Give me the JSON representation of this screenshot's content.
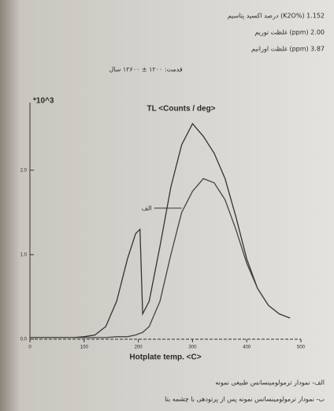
{
  "header": {
    "lines": [
      "درصد اکسید پتاسیم (K2O%) 1.152",
      "غلظت توریم (ppm) 2.00",
      "غلظت اورانیم (ppm) 3.87"
    ],
    "age": "قدمت: ۱۲۰۰ ± ۱۲۶۰۰ سال"
  },
  "chart_data": {
    "type": "line",
    "title": "TL <Counts / deg>",
    "y_multiplier": "*10^3",
    "x_label": "Hotplate temp. <C>",
    "x": [
      0,
      20,
      40,
      60,
      80,
      100,
      120,
      140,
      160,
      180,
      195,
      203,
      208,
      220,
      240,
      260,
      280,
      300,
      320,
      340,
      360,
      380,
      400,
      420,
      440,
      460,
      480
    ],
    "series": [
      {
        "color": "#333333",
        "values": [
          0.02,
          0.02,
          0.02,
          0.02,
          0.02,
          0.03,
          0.05,
          0.15,
          0.45,
          0.95,
          1.25,
          1.3,
          0.3,
          0.45,
          1.1,
          1.8,
          2.3,
          2.55,
          2.4,
          2.2,
          1.9,
          1.45,
          0.95,
          0.6,
          0.4,
          0.3,
          0.25
        ]
      },
      {
        "color": "#444444",
        "values": [
          0.02,
          0.02,
          0.02,
          0.02,
          0.02,
          0.02,
          0.02,
          0.02,
          0.03,
          0.03,
          0.05,
          0.07,
          0.08,
          0.15,
          0.45,
          1.0,
          1.5,
          1.75,
          1.9,
          1.85,
          1.65,
          1.3,
          0.9,
          0.6,
          0.4,
          0.3,
          0.25
        ]
      }
    ],
    "annotations": [
      "الف"
    ],
    "xlim": [
      0,
      500
    ],
    "xticks": [
      0,
      100,
      200,
      300,
      400,
      500
    ],
    "ylim": [
      0,
      2.8
    ],
    "yticks": [
      {
        "value": 0,
        "label": "0.0"
      },
      {
        "value": 1,
        "label": "1.0"
      },
      {
        "value": 2,
        "label": "2.0"
      }
    ]
  },
  "footer": {
    "captions": [
      "الف- نمودار ترمولومینسانس طبیعی نمونه",
      "ب- نمودار ترمولومینسانس نمونه پس از پرتودهی با چشمه بتا"
    ]
  }
}
